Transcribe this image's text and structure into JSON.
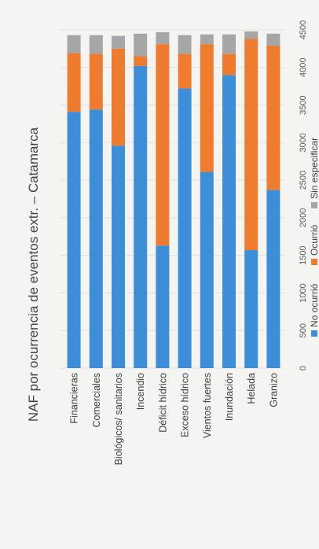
{
  "chart_data": {
    "type": "bar",
    "orientation": "horizontal-stacked",
    "title": "NAF por ocurrencia de eventos extr. – Catamarca",
    "categories": [
      "Financieras",
      "Comerciales",
      "Biológicos/ sanitarios",
      "Incendio",
      "Déficit hídrico",
      "Exceso hídrico",
      "Vientos fuertes",
      "Inundación",
      "Helada",
      "Granizo"
    ],
    "series": [
      {
        "name": "No ocurrió",
        "color": "#3d8ed8",
        "values": [
          3410,
          3440,
          2960,
          4020,
          1630,
          3720,
          2610,
          3900,
          1570,
          2370
        ]
      },
      {
        "name": "Ocurrió",
        "color": "#ef7c2e",
        "values": [
          780,
          740,
          1290,
          130,
          2680,
          460,
          1700,
          280,
          2810,
          1920
        ]
      },
      {
        "name": "Sin especificar",
        "color": "#a6a6a6",
        "values": [
          240,
          250,
          170,
          300,
          160,
          250,
          130,
          260,
          100,
          160
        ]
      }
    ],
    "xlim": [
      0,
      4500
    ],
    "xticks": [
      "0",
      "500",
      "1000",
      "1500",
      "2000",
      "2500",
      "3000",
      "3500",
      "4000",
      "4500"
    ],
    "grid": true,
    "legend_position": "bottom"
  }
}
